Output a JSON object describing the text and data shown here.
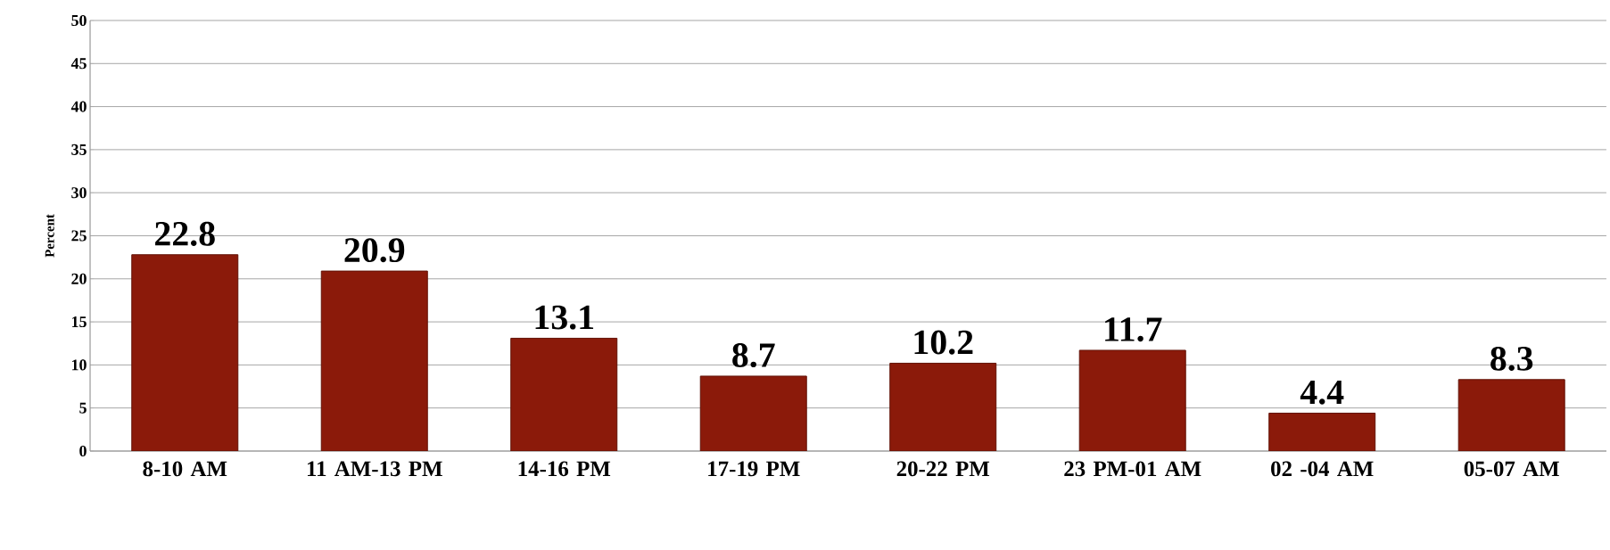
{
  "chart_data": {
    "type": "bar",
    "ylabel": "Percent",
    "categories": [
      "8-10  AM",
      "11 AM-13 PM",
      "14-16 PM",
      "17-19 PM",
      "20-22 PM",
      "23 PM-01 AM",
      "02 -04 AM",
      "05-07 AM"
    ],
    "values": [
      22.8,
      20.9,
      13.1,
      8.7,
      10.2,
      11.7,
      4.4,
      8.3
    ],
    "color": "#8b1a0a",
    "ylim": [
      0,
      50
    ],
    "yticks": [
      0,
      5,
      10,
      15,
      20,
      25,
      30,
      35,
      40,
      45,
      50
    ],
    "grid": "y",
    "data_labels": true
  }
}
